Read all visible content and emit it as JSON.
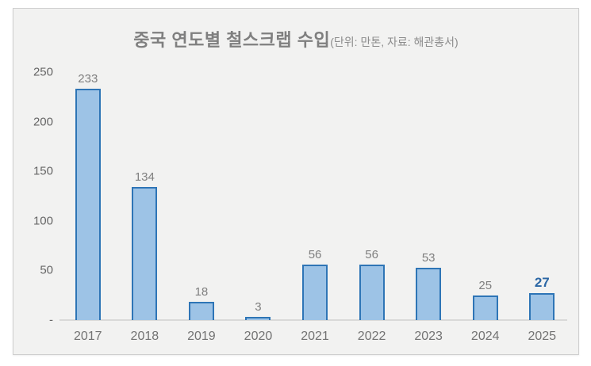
{
  "chart_data": {
    "type": "bar",
    "title": "중국 연도별 철스크랩 수입",
    "subtitle": "(단위: 만톤, 자료: 해관총서)",
    "categories": [
      "2017",
      "2018",
      "2019",
      "2020",
      "2021",
      "2022",
      "2023",
      "2024",
      "2025"
    ],
    "values": [
      233,
      134,
      18,
      3,
      56,
      56,
      53,
      25,
      27
    ],
    "xlabel": "",
    "ylabel": "",
    "ylim": [
      0,
      250
    ],
    "yticks": [
      250,
      200,
      150,
      100,
      50,
      0
    ],
    "ytick_labels": [
      "250",
      "200",
      "150",
      "100",
      "50",
      "-"
    ],
    "grid": false,
    "legend": "none",
    "colors": {
      "bar_fill": "#9dc3e6",
      "bar_border": "#2e75b6",
      "value_label": "#7f7f7f",
      "highlight_label": "#2c67a5",
      "axis_text": "#666666",
      "panel_background": "#f2f2f1",
      "panel_border": "#cfcfcf",
      "baseline": "#d9d9d8"
    },
    "highlight": {
      "index": 8,
      "note": "last bar value shown bold blue"
    }
  }
}
